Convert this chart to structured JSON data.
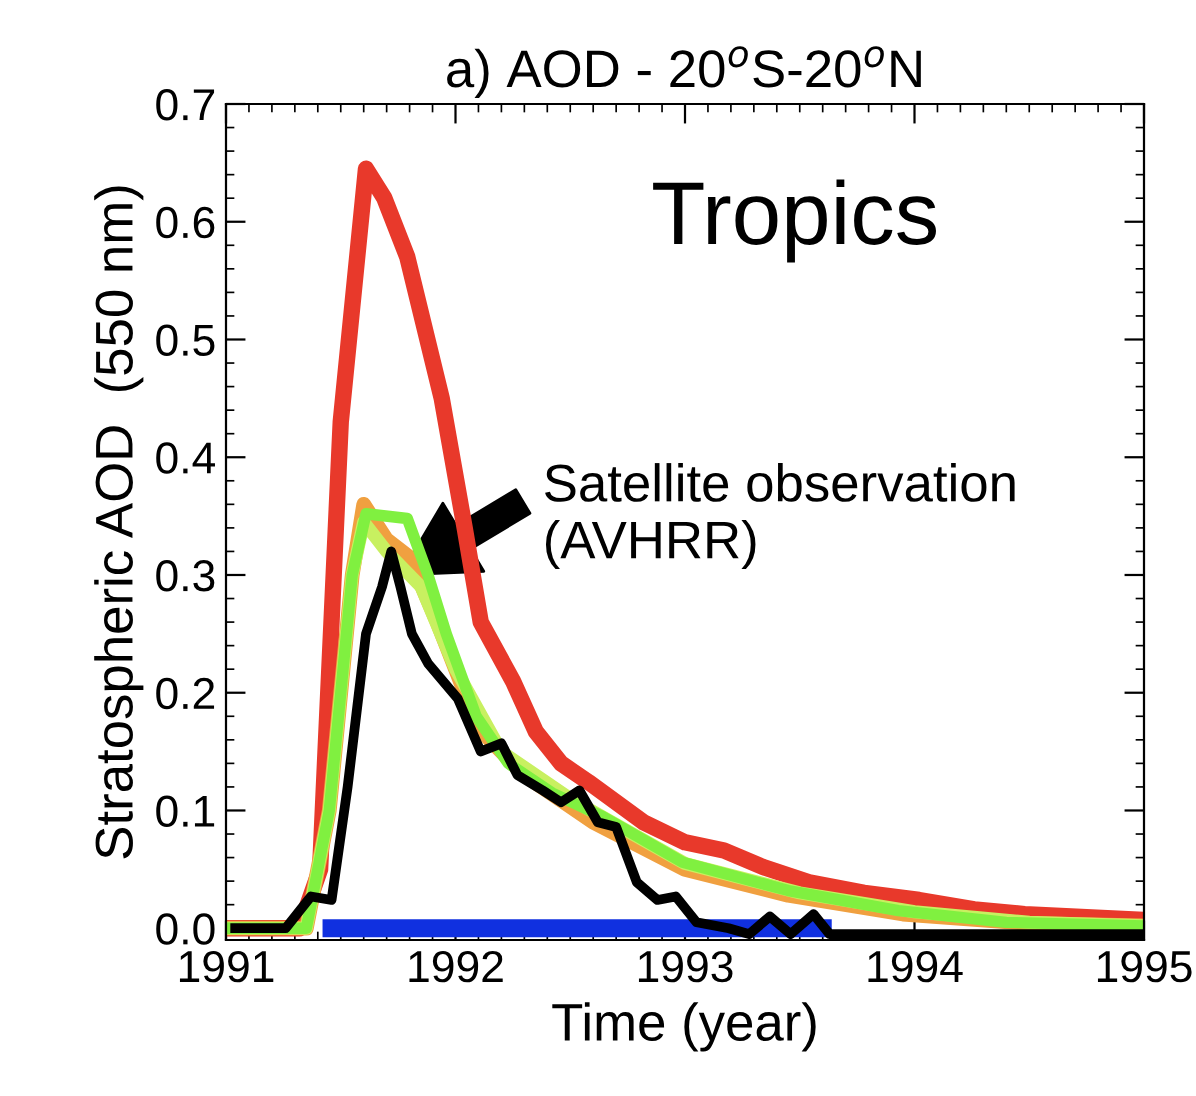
{
  "chart_data": {
    "type": "line",
    "title": "a) AOD - 20$^{o}$S-20$^{o}$N",
    "xlabel": "Time (year)",
    "ylabel": "Stratospheric AOD  (550 nm)",
    "xlim": [
      1991,
      1995
    ],
    "xticks": [
      1991,
      1992,
      1993,
      1994,
      1995
    ],
    "ylim": [
      -0.01,
      0.7
    ],
    "yticks": [
      {
        "value": 0,
        "label": "0.0"
      },
      0.1,
      0.2,
      0.3,
      0.4,
      0.5,
      0.6,
      0.7
    ],
    "grid": false,
    "legend": false,
    "annotations": [
      "Tropics",
      {
        "text": "Satellite observation\n(AVHRR)",
        "x": 1991.76,
        "y": 0.3
      }
    ],
    "series": [
      {
        "color": "#1030e0",
        "x": [
          1991.46,
          1993.6
        ],
        "values": [
          0,
          0
        ]
      },
      {
        "color": "#e8392b",
        "x": [
          1991.0,
          1991.32,
          1991.41,
          1991.5,
          1991.61,
          1991.69,
          1991.79,
          1991.94,
          1992.04,
          1992.11,
          1992.25,
          1992.35,
          1992.46,
          1992.58,
          1992.82,
          1993.0,
          1993.17,
          1993.34,
          1993.54,
          1993.78,
          1994.02,
          1994.26,
          1994.48,
          1995.0
        ],
        "values": [
          0,
          0,
          0.05,
          0.43,
          0.645,
          0.62,
          0.57,
          0.45,
          0.34,
          0.26,
          0.21,
          0.167,
          0.14,
          0.124,
          0.09,
          0.073,
          0.066,
          0.052,
          0.039,
          0.03,
          0.024,
          0.016,
          0.012,
          0.007
        ]
      },
      {
        "color": "#f0a040",
        "x": [
          1991.0,
          1991.35,
          1991.45,
          1991.55,
          1991.6,
          1991.7,
          1991.8,
          1991.92,
          1992.1,
          1992.3,
          1992.6,
          1993.0,
          1993.45,
          1993.95,
          1994.5,
          1995.0
        ],
        "values": [
          0,
          0,
          0.1,
          0.3,
          0.36,
          0.33,
          0.315,
          0.26,
          0.17,
          0.13,
          0.09,
          0.05,
          0.028,
          0.012,
          0.004,
          0.002
        ]
      },
      {
        "color": "#c8f060",
        "x": [
          1991.0,
          1991.35,
          1991.45,
          1991.55,
          1991.6,
          1991.7,
          1991.85,
          1992.0,
          1992.2,
          1992.5,
          1993.0,
          1993.5,
          1994.0,
          1994.5,
          1995.0
        ],
        "values": [
          0,
          0,
          0.1,
          0.3,
          0.345,
          0.32,
          0.29,
          0.22,
          0.15,
          0.11,
          0.055,
          0.03,
          0.014,
          0.005,
          0.002
        ]
      },
      {
        "color": "#80f040",
        "x": [
          1991.0,
          1991.35,
          1991.45,
          1991.55,
          1991.61,
          1991.79,
          1991.88,
          1991.96,
          1992.09,
          1992.23,
          1992.42,
          1992.64,
          1992.99,
          1993.45,
          1993.93,
          1994.4,
          1995.0
        ],
        "values": [
          0,
          0,
          0.1,
          0.3,
          0.352,
          0.348,
          0.3,
          0.25,
          0.18,
          0.14,
          0.115,
          0.095,
          0.056,
          0.032,
          0.015,
          0.005,
          0.002
        ]
      },
      {
        "color": "#000000",
        "x": [
          1991.04,
          1991.26,
          1991.37,
          1991.46,
          1991.53,
          1991.61,
          1991.68,
          1991.72,
          1991.76,
          1991.81,
          1991.88,
          1992.01,
          1992.11,
          1992.2,
          1992.27,
          1992.38,
          1992.46,
          1992.54,
          1992.62,
          1992.7,
          1992.79,
          1992.88,
          1992.96,
          1993.05,
          1993.19,
          1993.28,
          1993.37,
          1993.46,
          1993.56,
          1993.63,
          1995.0
        ],
        "values": [
          0,
          0,
          0.027,
          0.024,
          0.12,
          0.25,
          0.29,
          0.32,
          0.29,
          0.25,
          0.225,
          0.195,
          0.15,
          0.157,
          0.13,
          0.117,
          0.107,
          0.117,
          0.09,
          0.086,
          0.039,
          0.024,
          0.027,
          0.005,
          0,
          -0.005,
          0.01,
          -0.005,
          0.012,
          -0.005,
          -0.005
        ]
      }
    ]
  }
}
